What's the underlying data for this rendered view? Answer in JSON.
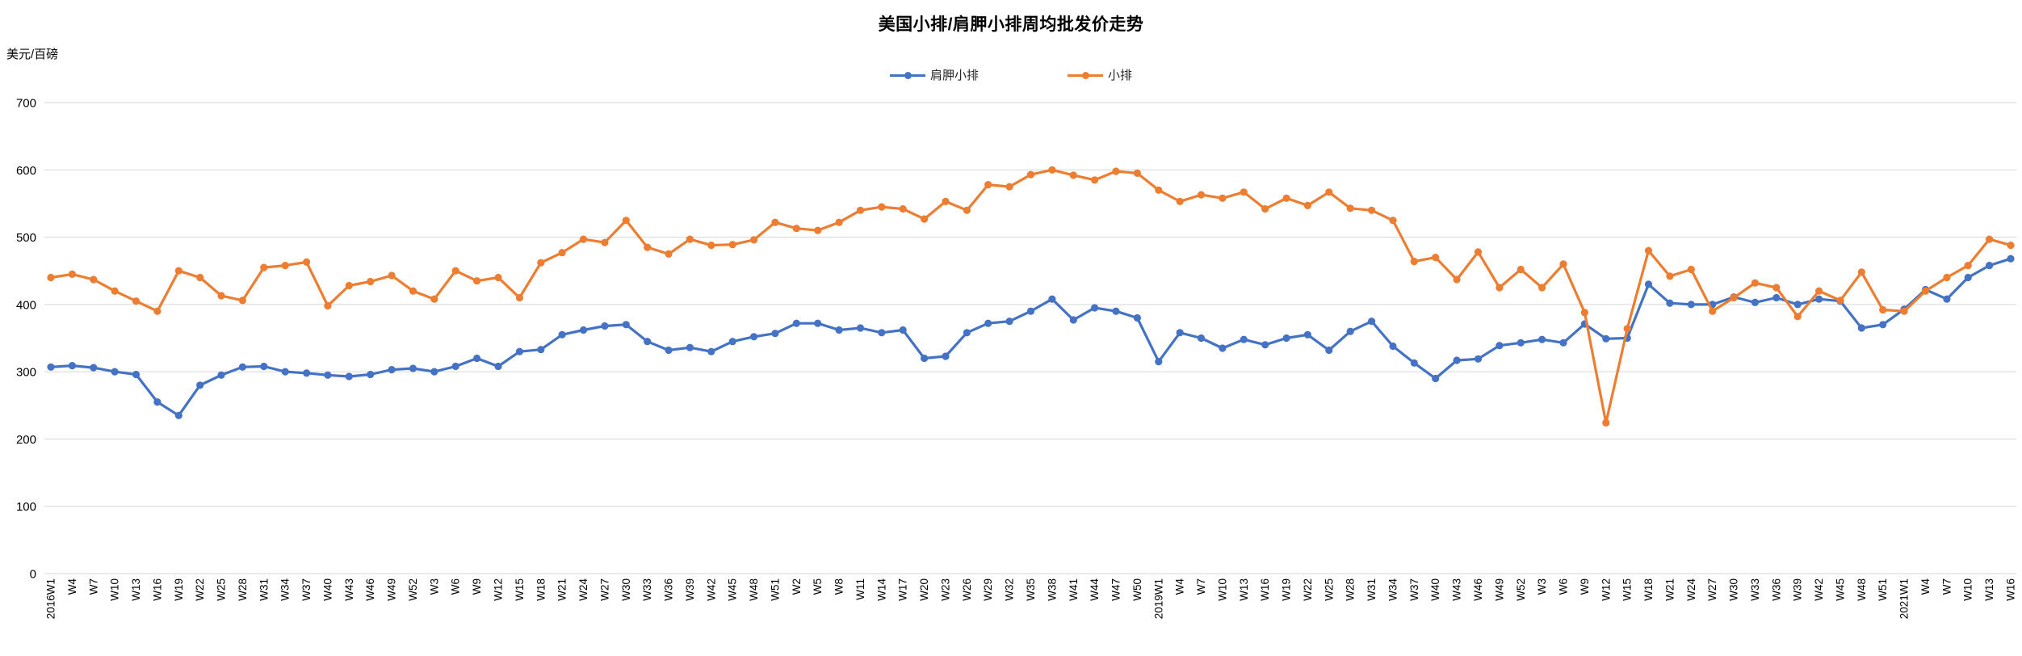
{
  "title": "美国小排/肩胛小排周均批发价走势",
  "y_axis": {
    "unit": "美元/百磅",
    "ticks": [
      0,
      100,
      200,
      300,
      400,
      500,
      600,
      700
    ],
    "max": 700
  },
  "colors": {
    "shoulder_rib_blue": "#4472C4",
    "rib_orange": "#ED7D31",
    "gridline": "#d6d6d6"
  },
  "chart_data": {
    "type": "line",
    "title": "美国小排/肩胛小排周均批发价走势",
    "ylabel": "美元/百磅",
    "ylim": [
      0,
      700
    ],
    "grid": true,
    "legend_position": "top",
    "marker": "circle",
    "categories": [
      "2016W1",
      "W4",
      "W7",
      "W10",
      "W13",
      "W16",
      "W19",
      "W22",
      "W25",
      "W28",
      "W31",
      "W34",
      "W37",
      "W40",
      "W43",
      "W46",
      "W49",
      "W52",
      "W3",
      "W6",
      "W9",
      "W12",
      "W15",
      "W18",
      "W21",
      "W24",
      "W27",
      "W30",
      "W33",
      "W36",
      "W39",
      "W42",
      "W45",
      "W48",
      "W51",
      "W2",
      "W5",
      "W8",
      "W11",
      "W14",
      "W17",
      "W20",
      "W23",
      "W26",
      "W29",
      "W32",
      "W35",
      "W38",
      "W41",
      "W44",
      "W47",
      "W50",
      "2019W1",
      "W4",
      "W7",
      "W10",
      "W13",
      "W16",
      "W19",
      "W22",
      "W25",
      "W28",
      "W31",
      "W34",
      "W37",
      "W40",
      "W43",
      "W46",
      "W49",
      "W52",
      "W3",
      "W6",
      "W9",
      "W12",
      "W15",
      "W18",
      "W21",
      "W24",
      "W27",
      "W30",
      "W33",
      "W36",
      "W39",
      "W42",
      "W45",
      "W48",
      "W51",
      "2021W1",
      "W4",
      "W7",
      "W10",
      "W13",
      "W16"
    ],
    "series": [
      {
        "name": "肩胛小排",
        "color": "#4472C4",
        "values": [
          307,
          309,
          306,
          300,
          296,
          255,
          235,
          280,
          295,
          307,
          308,
          300,
          298,
          295,
          293,
          296,
          303,
          305,
          300,
          308,
          320,
          308,
          330,
          333,
          355,
          362,
          368,
          370,
          345,
          332,
          336,
          330,
          345,
          352,
          357,
          372,
          372,
          362,
          365,
          358,
          362,
          320,
          323,
          358,
          372,
          375,
          390,
          408,
          377,
          395,
          390,
          380,
          315,
          358,
          350,
          335,
          348,
          340,
          350,
          355,
          332,
          360,
          375,
          338,
          313,
          290,
          317,
          319,
          339,
          343,
          348,
          343,
          371,
          349,
          350,
          430,
          402,
          400,
          400,
          411,
          403,
          410,
          400,
          408,
          405,
          365,
          370,
          393,
          422,
          408,
          440,
          458,
          468
        ]
      },
      {
        "name": "小排",
        "color": "#ED7D31",
        "values": [
          440,
          445,
          437,
          420,
          405,
          390,
          450,
          440,
          413,
          406,
          455,
          458,
          463,
          398,
          428,
          434,
          443,
          420,
          408,
          450,
          435,
          440,
          410,
          462,
          477,
          497,
          492,
          525,
          485,
          475,
          497,
          488,
          489,
          496,
          522,
          513,
          510,
          522,
          540,
          545,
          542,
          527,
          553,
          540,
          578,
          575,
          593,
          600,
          592,
          585,
          598,
          595,
          570,
          553,
          563,
          558,
          567,
          542,
          558,
          547,
          567,
          543,
          540,
          525,
          464,
          470,
          437,
          478,
          425,
          452,
          425,
          460,
          388,
          224,
          364,
          480,
          442,
          452,
          390,
          410,
          432,
          425,
          382,
          420,
          406,
          448,
          392,
          390,
          420,
          440,
          458,
          497,
          488
        ]
      }
    ]
  }
}
